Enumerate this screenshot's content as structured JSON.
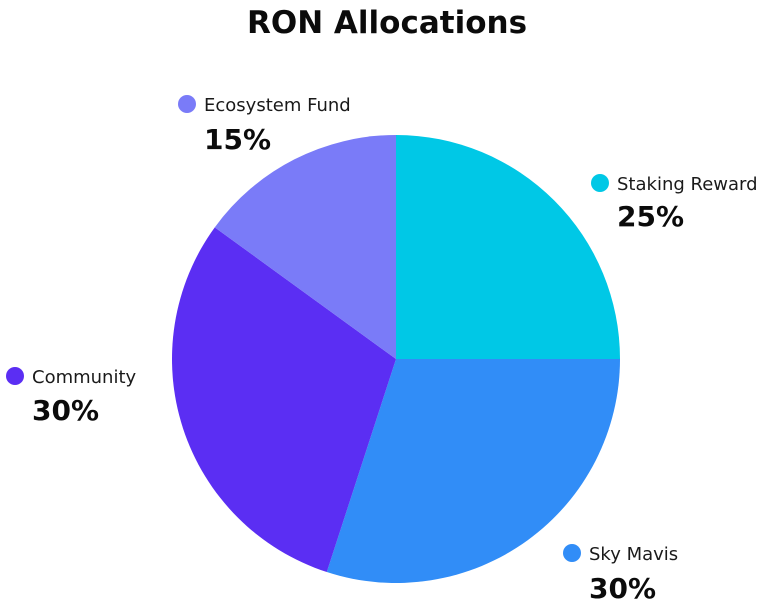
{
  "chart_data": {
    "type": "pie",
    "title": "RON Allocations",
    "start_angle_deg": 0,
    "direction": "clockwise",
    "slices": [
      {
        "label": "Staking Reward",
        "value": 25,
        "display": "25%",
        "color": "#00c8e6"
      },
      {
        "label": "Sky Mavis",
        "value": 30,
        "display": "30%",
        "color": "#318df7"
      },
      {
        "label": "Community",
        "value": 30,
        "display": "30%",
        "color": "#5b2ef3"
      },
      {
        "label": "Ecosystem Fund",
        "value": 15,
        "display": "15%",
        "color": "#7a7bf8"
      }
    ]
  }
}
